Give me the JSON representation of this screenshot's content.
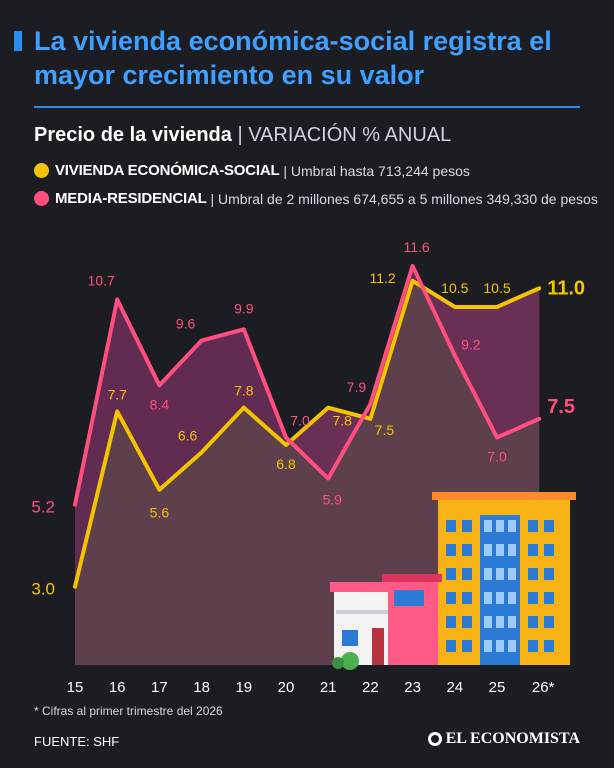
{
  "header": {
    "title": "La vivienda económica-social registra el mayor crecimiento en su valor"
  },
  "colors": {
    "background": "#1b1d23",
    "accent_blue": "#2a8ef0",
    "economica": "#f5c400",
    "residencial": "#ff4f7e"
  },
  "chart_data": {
    "type": "line",
    "title": "Precio de la vivienda",
    "subtitle": "VARIACIÓN % ANUAL",
    "categories": [
      "15",
      "16",
      "17",
      "18",
      "19",
      "20",
      "21",
      "22",
      "23",
      "24",
      "25",
      "26*"
    ],
    "series": [
      {
        "name": "VIVIENDA ECONÓMICA-SOCIAL",
        "description": "Umbral hasta 713,244 pesos",
        "color": "#f5c400",
        "values": [
          3.0,
          7.7,
          5.6,
          6.6,
          7.8,
          6.8,
          7.8,
          7.5,
          11.2,
          10.5,
          10.5,
          11.0
        ],
        "labels": [
          "3.0",
          "7.7",
          "5.6",
          "6.6",
          "7.8",
          "6.8",
          "7.8",
          "7.5",
          "11.2",
          "10.5",
          "10.5",
          "11.0"
        ]
      },
      {
        "name": "MEDIA-RESIDENCIAL",
        "description": "Umbral de 2 millones 674,655 a 5 millones 349,330 de pesos",
        "color": "#ff4f7e",
        "values": [
          5.2,
          10.7,
          8.4,
          9.6,
          9.9,
          7.0,
          5.9,
          7.9,
          11.6,
          9.2,
          7.0,
          7.5
        ],
        "labels": [
          "5.2",
          "10.7",
          "8.4",
          "9.6",
          "9.9",
          "7.0",
          "5.9",
          "7.9",
          "11.6",
          "9.2",
          "7.0",
          "7.5"
        ]
      }
    ],
    "legend_position": "top-left",
    "grid": false
  },
  "footnote": "* Cifras al primer trimestre del 2026",
  "source": "FUENTE: SHF",
  "logo_text": "EL ECONOMISTA",
  "illustration": "houses-and-apartment-building-icon"
}
